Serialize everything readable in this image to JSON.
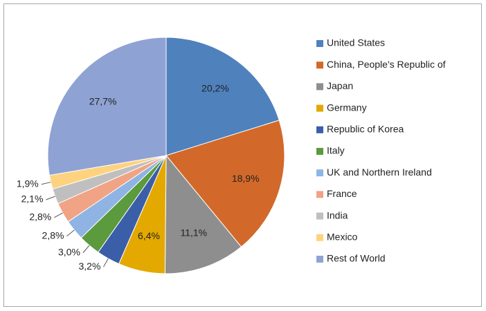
{
  "chart_data": {
    "type": "pie",
    "categories": [
      "United States",
      "China, People's Republic of",
      "Japan",
      "Germany",
      "Republic of Korea",
      "Italy",
      "UK and Northern Ireland",
      "France",
      "India",
      "Mexico",
      "Rest of World"
    ],
    "values": [
      20.2,
      18.9,
      11.1,
      6.4,
      3.2,
      3.0,
      2.8,
      2.8,
      2.1,
      1.9,
      27.7
    ],
    "value_labels": [
      "20,2%",
      "18,9%",
      "11,1%",
      "6,4%",
      "3,2%",
      "3,0%",
      "2,8%",
      "2,8%",
      "2,1%",
      "1,9%",
      "27,7%"
    ],
    "colors": [
      "#4f81bd",
      "#d2692a",
      "#8e8e8e",
      "#e3a900",
      "#3b5ea9",
      "#5b9a3d",
      "#8fb4e3",
      "#f1a385",
      "#bfbfbf",
      "#ffd27f",
      "#8fa2d4"
    ],
    "legend": "right"
  }
}
